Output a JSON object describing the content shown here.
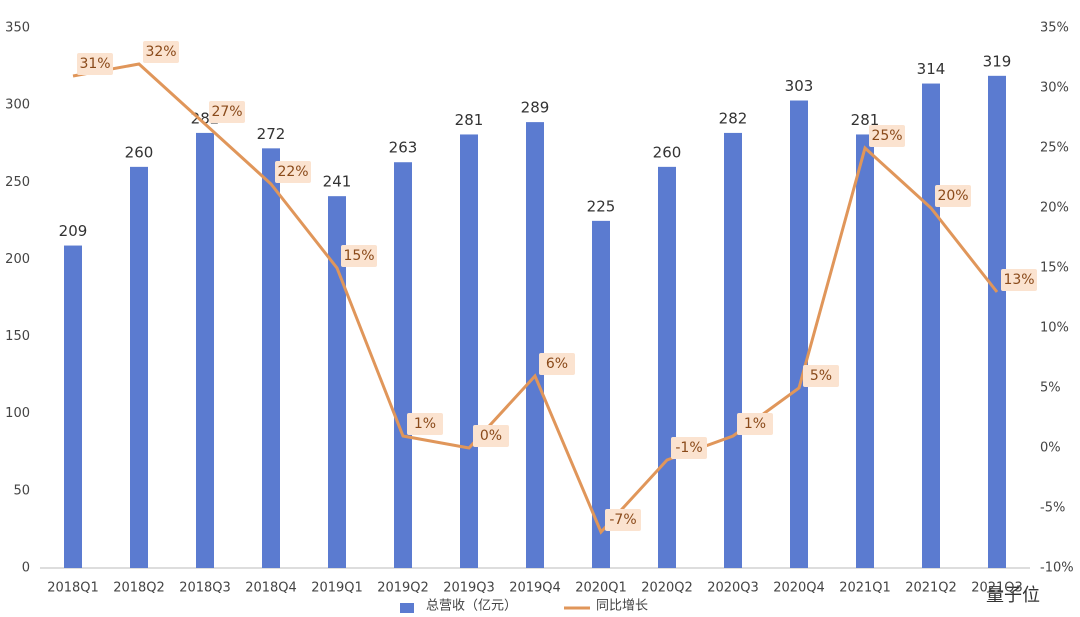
{
  "chart_data": {
    "type": "bar_line",
    "categories": [
      "2018Q1",
      "2018Q2",
      "2018Q3",
      "2018Q4",
      "2019Q1",
      "2019Q2",
      "2019Q3",
      "2019Q4",
      "2020Q1",
      "2020Q2",
      "2020Q3",
      "2020Q4",
      "2021Q1",
      "2021Q2",
      "2021Q3"
    ],
    "series": [
      {
        "name": "总营收（亿元）",
        "color": "#5b7bd0",
        "values": [
          209,
          260,
          282,
          272,
          241,
          263,
          281,
          289,
          225,
          260,
          282,
          303,
          281,
          314,
          319
        ]
      },
      {
        "name": "同比增长",
        "color": "#e0965a",
        "axis": "y2",
        "values": [
          31,
          32,
          27,
          22,
          15,
          1,
          0,
          6,
          -7,
          -1,
          1,
          5,
          25,
          20,
          13
        ],
        "value_labels": [
          "31%",
          "32%",
          "27%",
          "22%",
          "15%",
          "1%",
          "0%",
          "6%",
          "-7%",
          "-1%",
          "1%",
          "5%",
          "25%",
          "20%",
          "13%"
        ]
      }
    ],
    "ylim": [
      0,
      350
    ],
    "yticks": [
      0,
      50,
      100,
      150,
      200,
      250,
      300,
      350
    ],
    "y2lim": [
      -10,
      35
    ],
    "y2ticks": [
      {
        "value": -10,
        "label": "-10%"
      },
      {
        "value": -5,
        "label": "-5%"
      },
      {
        "value": 0,
        "label": "0%"
      },
      {
        "value": 5,
        "label": "5%"
      },
      {
        "value": 10,
        "label": "10%"
      },
      {
        "value": 15,
        "label": "15%"
      },
      {
        "value": 20,
        "label": "20%"
      },
      {
        "value": 25,
        "label": "25%"
      },
      {
        "value": 30,
        "label": "30%"
      },
      {
        "value": 35,
        "label": "35%"
      }
    ],
    "watermark": "量子位"
  }
}
